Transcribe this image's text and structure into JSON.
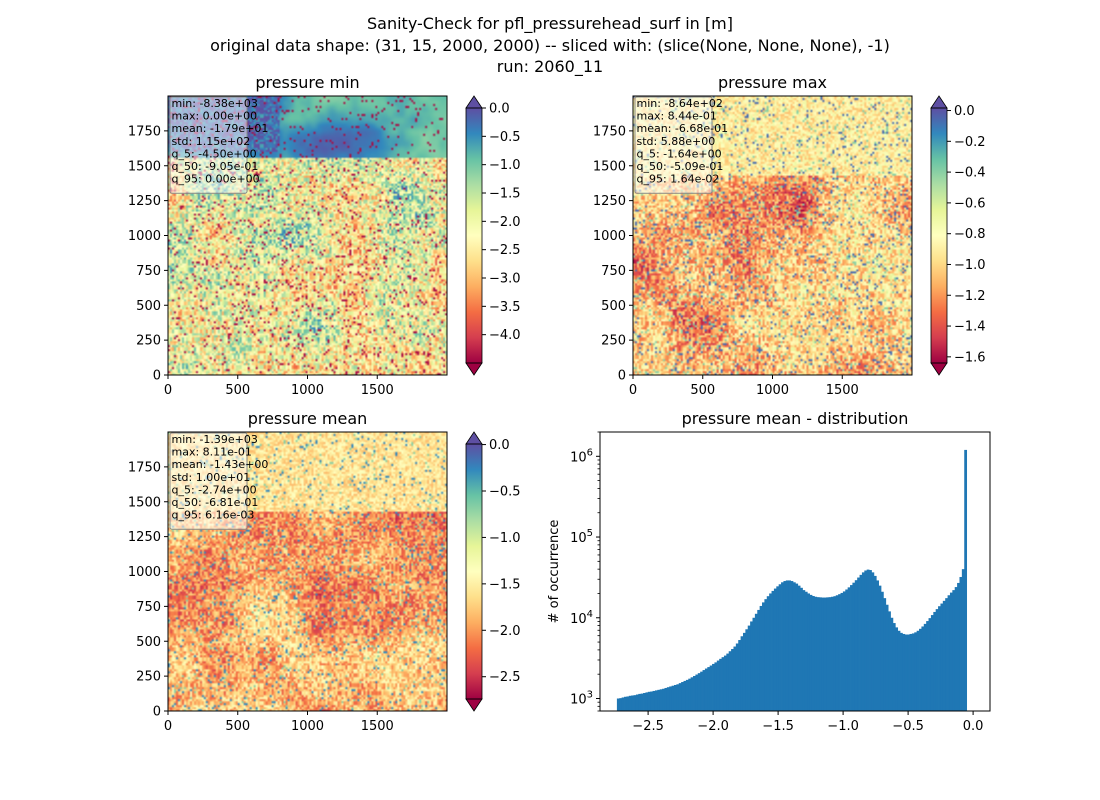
{
  "figure": {
    "title_lines": [
      "Sanity-Check for pfl_pressurehead_surf in [m]",
      "original data shape: (31, 15, 2000, 2000) -- sliced with: (slice(None, None, None), -1)",
      "run: 2060_11"
    ]
  },
  "chart_data": [
    {
      "type": "heatmap",
      "title": "pressure min",
      "colormap": "Spectral",
      "extend": "both",
      "xticks": [
        "0",
        "500",
        "1000",
        "1500"
      ],
      "yticks": [
        "0",
        "250",
        "500",
        "750",
        "1000",
        "1250",
        "1500",
        "1750"
      ],
      "xlim": [
        0,
        2000
      ],
      "ylim": [
        0,
        2000
      ],
      "color_range": [
        -4.5,
        0.0
      ],
      "colorbar_ticks": [
        "0.0",
        "−0.5",
        "−1.0",
        "−1.5",
        "−2.0",
        "−2.5",
        "−3.0",
        "−3.5",
        "−4.0"
      ],
      "colorbar_values": [
        0.0,
        -0.5,
        -1.0,
        -1.5,
        -2.0,
        -2.5,
        -3.0,
        -3.5,
        -4.0
      ],
      "stats": [
        "min: -8.38e+03",
        "max: 0.00e+00",
        "mean: -1.79e+01",
        "std: 1.15e+02",
        "q_5: -4.50e+00",
        "q_50: -9.05e-01",
        "q_95: 0.00e+00"
      ]
    },
    {
      "type": "heatmap",
      "title": "pressure max",
      "colormap": "Spectral",
      "extend": "both",
      "xticks": [
        "0",
        "500",
        "1000",
        "1500"
      ],
      "yticks": [
        "0",
        "250",
        "500",
        "750",
        "1000",
        "1250",
        "1500",
        "1750"
      ],
      "xlim": [
        0,
        2000
      ],
      "ylim": [
        0,
        2000
      ],
      "color_range": [
        -1.64,
        0.0164
      ],
      "colorbar_ticks": [
        "0.0",
        "−0.2",
        "−0.4",
        "−0.6",
        "−0.8",
        "−1.0",
        "−1.2",
        "−1.4",
        "−1.6"
      ],
      "colorbar_values": [
        0.0,
        -0.2,
        -0.4,
        -0.6,
        -0.8,
        -1.0,
        -1.2,
        -1.4,
        -1.6
      ],
      "stats": [
        "min: -8.64e+02",
        "max: 8.44e-01",
        "mean: -6.68e-01",
        "std: 5.88e+00",
        "q_5: -1.64e+00",
        "q_50: -5.09e-01",
        "q_95: 1.64e-02"
      ]
    },
    {
      "type": "heatmap",
      "title": "pressure mean",
      "colormap": "Spectral",
      "extend": "both",
      "xticks": [
        "0",
        "500",
        "1000",
        "1500"
      ],
      "yticks": [
        "0",
        "250",
        "500",
        "750",
        "1000",
        "1250",
        "1500",
        "1750"
      ],
      "xlim": [
        0,
        2000
      ],
      "ylim": [
        0,
        2000
      ],
      "color_range": [
        -2.74,
        0.00616
      ],
      "colorbar_ticks": [
        "0.0",
        "−0.5",
        "−1.0",
        "−1.5",
        "−2.0",
        "−2.5"
      ],
      "colorbar_values": [
        0.0,
        -0.5,
        -1.0,
        -1.5,
        -2.0,
        -2.5
      ],
      "stats": [
        "min: -1.39e+03",
        "max: 8.11e-01",
        "mean: -1.43e+00",
        "std: 1.00e+01",
        "q_5: -2.74e+00",
        "q_50: -6.81e-01",
        "q_95: 6.16e-03"
      ]
    },
    {
      "type": "bar",
      "title": "pressure mean - distribution",
      "ylabel": "# of occurrence",
      "xlabel": "",
      "yscale": "log",
      "ylim": [
        700,
        2000000
      ],
      "xlim": [
        -2.87,
        0.13
      ],
      "color": "#1f77b4",
      "xticks": [
        -2.5,
        -2.0,
        -1.5,
        -1.0,
        -0.5,
        0.0
      ],
      "xtick_labels": [
        "−2.5",
        "−2.0",
        "−1.5",
        "−1.0",
        "−0.5",
        "0.0"
      ],
      "yticks": [
        1000,
        10000,
        100000,
        1000000
      ],
      "ytick_labels": [
        "10^3",
        "10^4",
        "10^5",
        "10^6"
      ],
      "bin_width": 0.0183,
      "bin_start": -2.74,
      "values": [
        1000,
        1010,
        1030,
        1050,
        1060,
        1080,
        1090,
        1100,
        1120,
        1140,
        1150,
        1170,
        1190,
        1210,
        1220,
        1240,
        1260,
        1280,
        1300,
        1320,
        1350,
        1380,
        1410,
        1440,
        1470,
        1500,
        1550,
        1600,
        1650,
        1700,
        1760,
        1830,
        1900,
        1980,
        2060,
        2150,
        2250,
        2350,
        2450,
        2560,
        2680,
        2800,
        2950,
        3100,
        3250,
        3400,
        3600,
        3850,
        4100,
        4400,
        4800,
        5300,
        5900,
        6500,
        7200,
        8000,
        9000,
        10000,
        11200,
        12500,
        14000,
        15500,
        17000,
        18500,
        20000,
        21500,
        23000,
        24500,
        26000,
        27500,
        28500,
        29000,
        29000,
        28500,
        27500,
        26500,
        25000,
        23500,
        22000,
        21000,
        20000,
        19200,
        18600,
        18200,
        18000,
        17900,
        17800,
        17800,
        17900,
        18000,
        18200,
        18500,
        19000,
        19600,
        20300,
        21200,
        22400,
        23800,
        25400,
        27200,
        29200,
        31500,
        34000,
        36500,
        38500,
        39500,
        39000,
        36500,
        33000,
        29000,
        25000,
        21000,
        17500,
        14500,
        12000,
        10000,
        8600,
        7600,
        6900,
        6500,
        6300,
        6200,
        6200,
        6300,
        6400,
        6600,
        6900,
        7300,
        7800,
        8400,
        9100,
        9900,
        10800,
        11800,
        12800,
        13900,
        15000,
        16200,
        17500,
        19000,
        20500,
        22000,
        24000,
        27000,
        32000,
        40000,
        1200000
      ]
    }
  ]
}
